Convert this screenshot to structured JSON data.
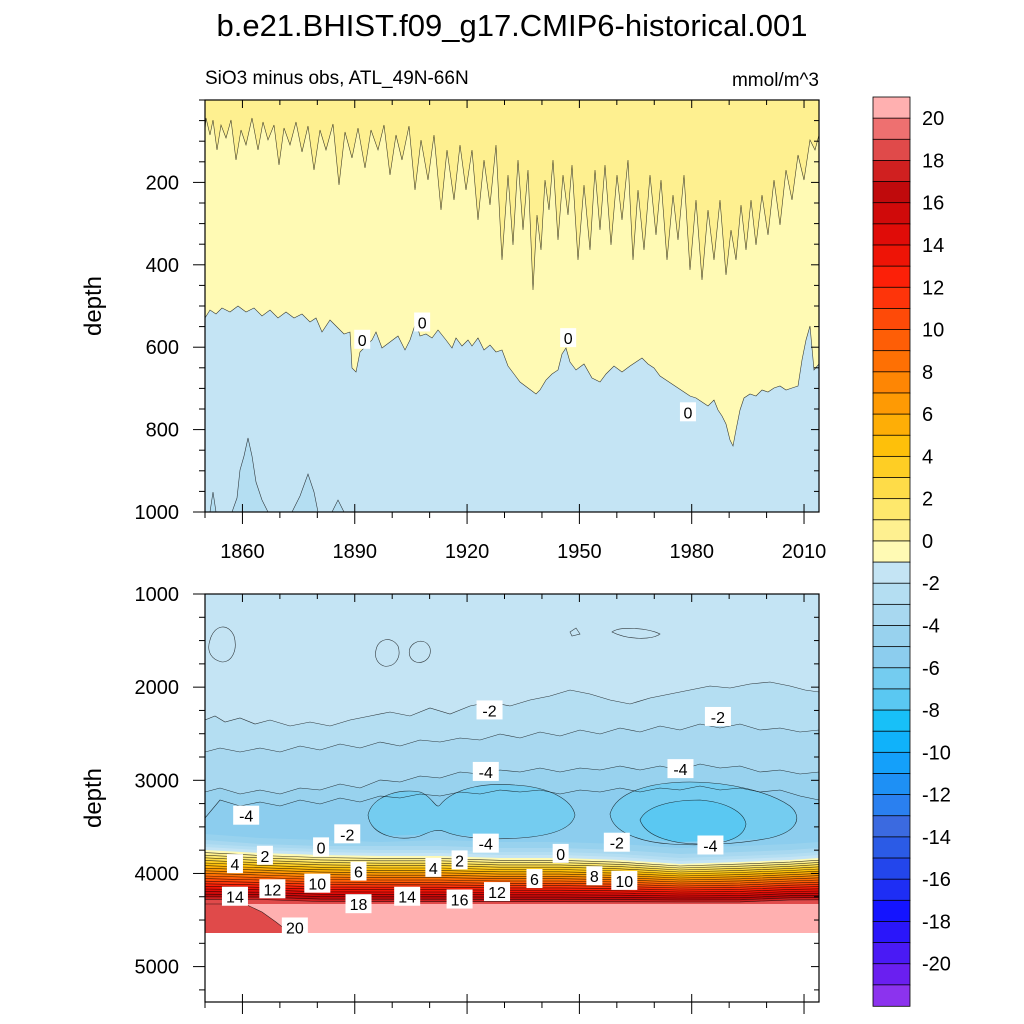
{
  "chart_data": {
    "type": "contour",
    "title": "b.e21.BHIST.f09_g17.CMIP6-historical.001",
    "subtitle_left": "SiO3 minus obs, ATL_49N-66N",
    "subtitle_right": "mmol/m^3",
    "x_range": [
      1850,
      2014
    ],
    "x_ticks": [
      "1860",
      "1890",
      "1920",
      "1950",
      "1980",
      "2010"
    ],
    "x_tick_values": [
      1860,
      1890,
      1920,
      1950,
      1980,
      2010
    ],
    "panels": [
      {
        "name": "upper",
        "ylabel": "depth",
        "ylim": [
          0,
          1000
        ],
        "y_tick_labels": [
          "200",
          "400",
          "600",
          "800",
          "1000"
        ],
        "y_tick_values": [
          200,
          400,
          600,
          800,
          1000
        ],
        "contour_labels": [
          {
            "text": "0",
            "x": 1892,
            "y": 582
          },
          {
            "text": "0",
            "x": 1908,
            "y": 540
          },
          {
            "text": "0",
            "x": 1947,
            "y": 578
          },
          {
            "text": "0",
            "x": 1979,
            "y": 758
          }
        ]
      },
      {
        "name": "lower",
        "ylabel": "depth",
        "ylim": [
          1000,
          5380
        ],
        "y_tick_labels": [
          "1000",
          "2000",
          "3000",
          "4000",
          "5000"
        ],
        "y_tick_values": [
          1000,
          2000,
          3000,
          4000,
          5000
        ],
        "contour_labels": [
          {
            "text": "-2",
            "x": 1926,
            "y": 2250
          },
          {
            "text": "-2",
            "x": 1987,
            "y": 2320
          },
          {
            "text": "-4",
            "x": 1925,
            "y": 2910
          },
          {
            "text": "-4",
            "x": 1977,
            "y": 2880
          },
          {
            "text": "-4",
            "x": 1861,
            "y": 3380
          },
          {
            "text": "-2",
            "x": 1888,
            "y": 3580
          },
          {
            "text": "-4",
            "x": 1925,
            "y": 3680
          },
          {
            "text": "-2",
            "x": 1960,
            "y": 3670
          },
          {
            "text": "-4",
            "x": 1985,
            "y": 3700
          },
          {
            "text": "4",
            "x": 1858,
            "y": 3900
          },
          {
            "text": "2",
            "x": 1866,
            "y": 3810
          },
          {
            "text": "0",
            "x": 1881,
            "y": 3720
          },
          {
            "text": "6",
            "x": 1891,
            "y": 3980
          },
          {
            "text": "4",
            "x": 1911,
            "y": 3940
          },
          {
            "text": "2",
            "x": 1918,
            "y": 3860
          },
          {
            "text": "0",
            "x": 1945,
            "y": 3790
          },
          {
            "text": "6",
            "x": 1938,
            "y": 4060
          },
          {
            "text": "8",
            "x": 1954,
            "y": 4030
          },
          {
            "text": "10",
            "x": 1962,
            "y": 4080
          },
          {
            "text": "14",
            "x": 1858,
            "y": 4250
          },
          {
            "text": "12",
            "x": 1868,
            "y": 4170
          },
          {
            "text": "10",
            "x": 1880,
            "y": 4110
          },
          {
            "text": "18",
            "x": 1891,
            "y": 4330
          },
          {
            "text": "14",
            "x": 1904,
            "y": 4250
          },
          {
            "text": "16",
            "x": 1918,
            "y": 4280
          },
          {
            "text": "12",
            "x": 1928,
            "y": 4200
          },
          {
            "text": "20",
            "x": 1874,
            "y": 4580
          }
        ]
      }
    ],
    "colorbar": {
      "levels": [
        -21,
        -20,
        -19,
        -18,
        -17,
        -16,
        -15,
        -14,
        -13,
        -12,
        -11,
        -10,
        -9,
        -8,
        -7,
        -6,
        -5,
        -4,
        -3,
        -2,
        -1,
        0,
        1,
        2,
        3,
        4,
        5,
        6,
        7,
        8,
        9,
        10,
        11,
        12,
        13,
        14,
        15,
        16,
        17,
        18,
        19,
        20,
        21
      ],
      "colors": [
        "#8c33ee",
        "#6a1ff0",
        "#4a1af5",
        "#2a16fa",
        "#1414ff",
        "#1e2ef5",
        "#2346ec",
        "#2b5be6",
        "#3b6ae0",
        "#2a80f0",
        "#1e90f5",
        "#14a0fa",
        "#10b2fa",
        "#18c0f8",
        "#5ac8f2",
        "#74ccf0",
        "#8ccdee",
        "#98d2ee",
        "#a8d8f0",
        "#b4def2",
        "#c4e4f4",
        "#fffab4",
        "#fef090",
        "#fee86c",
        "#fedc48",
        "#fece24",
        "#fec00a",
        "#feae06",
        "#fe9a04",
        "#fe8604",
        "#fe7004",
        "#fe5e06",
        "#fe4a08",
        "#fe340a",
        "#fc2008",
        "#ee1406",
        "#e00c08",
        "#d00a0a",
        "#c00a0c",
        "#d02020",
        "#e04a4a",
        "#ee7070",
        "#ffb0b0"
      ],
      "tick_labels": [
        "20",
        "18",
        "16",
        "14",
        "12",
        "10",
        "8",
        "6",
        "4",
        "2",
        "0",
        "-2",
        "-4",
        "-6",
        "-8",
        "-10",
        "-12",
        "-14",
        "-16",
        "-18",
        "-20"
      ],
      "tick_values": [
        20,
        18,
        16,
        14,
        12,
        10,
        8,
        6,
        4,
        2,
        0,
        -2,
        -4,
        -6,
        -8,
        -10,
        -12,
        -14,
        -16,
        -18,
        -20
      ]
    }
  }
}
